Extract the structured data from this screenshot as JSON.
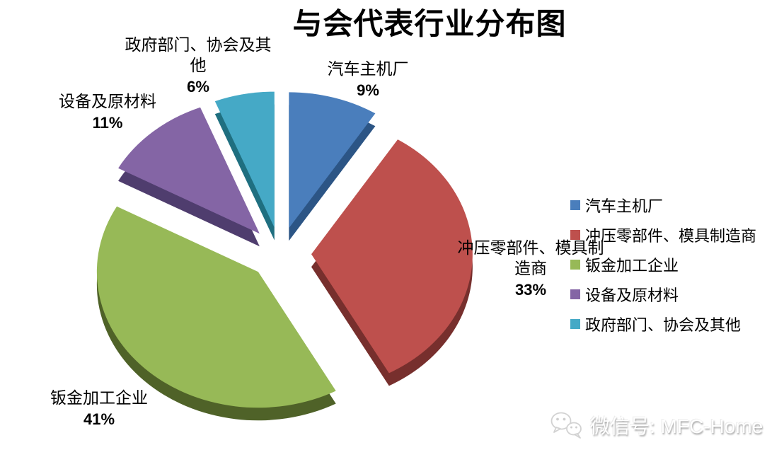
{
  "chart_data": {
    "type": "pie",
    "style": "3d-exploded",
    "title": "与会代表行业分布图",
    "direction": "clockwise",
    "start_angle_deg": 0,
    "legend_position": "right",
    "unit": "%",
    "categories": [
      "汽车主机厂",
      "冲压零部件、模具制造商",
      "钣金加工企业",
      "设备及原材料",
      "政府部门、协会及其他"
    ],
    "values": [
      9,
      33,
      41,
      11,
      6
    ],
    "colors": [
      "#4A7EBC",
      "#BE504D",
      "#97B957",
      "#8465A5",
      "#45A9C6"
    ],
    "side_colors": [
      "#2C5585",
      "#772F2D",
      "#4F6228",
      "#4F3D6E",
      "#1F6F80"
    ],
    "callouts": [
      {
        "lines": [
          "汽车主机厂"
        ],
        "pct": "9%"
      },
      {
        "lines": [
          "冲压零部件、模具制",
          "造商"
        ],
        "pct": "33%"
      },
      {
        "lines": [
          "钣金加工企业"
        ],
        "pct": "41%"
      },
      {
        "lines": [
          "设备及原材料"
        ],
        "pct": "11%"
      },
      {
        "lines": [
          "政府部门、协会及其",
          "他"
        ],
        "pct": "6%"
      }
    ]
  },
  "watermark": {
    "icon": "wechat-logo",
    "text": "微信号: MFC-Home"
  }
}
